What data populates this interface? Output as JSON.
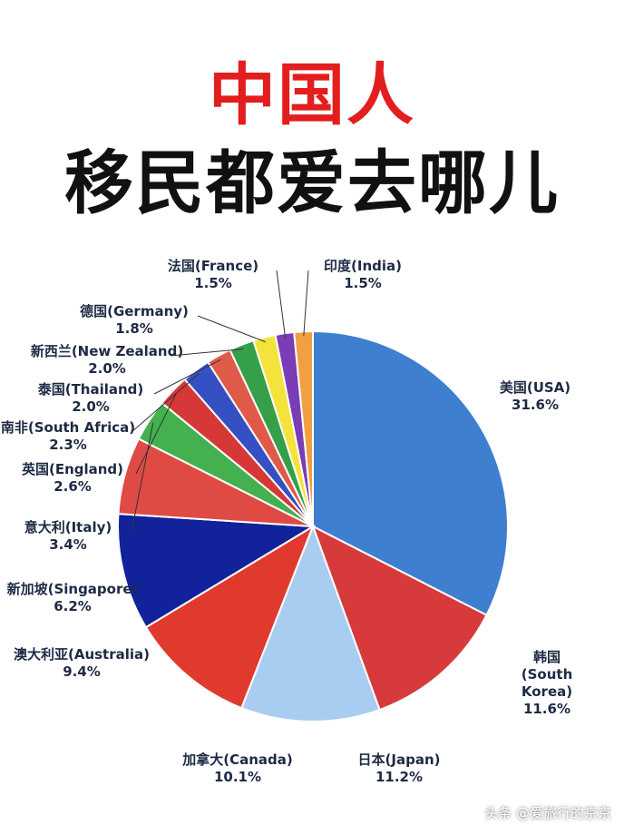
{
  "title": "中国人",
  "subtitle": "移民都爱去哪儿",
  "watermark": "头条 @爱旅行的京京",
  "chart_data": {
    "type": "pie",
    "categories": [
      "美国(USA)",
      "韩国(South Korea)",
      "日本(Japan)",
      "加拿大(Canada)",
      "澳大利亚(Australia)",
      "新加坡(Singapore)",
      "意大利(Italy)",
      "英国(England)",
      "南非(South Africa)",
      "泰国(Thailand)",
      "新西兰(New Zealand)",
      "德国(Germany)",
      "法国(France)",
      "印度(India)"
    ],
    "values": [
      31.6,
      11.6,
      11.2,
      10.1,
      9.4,
      6.2,
      3.4,
      2.6,
      2.3,
      2.0,
      2.0,
      1.8,
      1.5,
      1.5
    ],
    "value_labels": [
      "31.6%",
      "11.6%",
      "11.2%",
      "10.1%",
      "9.4%",
      "6.2%",
      "3.4%",
      "2.6%",
      "2.3%",
      "2.0%",
      "2.0%",
      "1.8%",
      "1.5%",
      "1.5%"
    ],
    "colors": [
      "#3f7fd0",
      "#d73a3a",
      "#a8cdf0",
      "#e03a2f",
      "#12229a",
      "#e04a45",
      "#44b04f",
      "#d63838",
      "#3550c2",
      "#e05a4a",
      "#35a048",
      "#f3e33a",
      "#7a3db5",
      "#f0a040"
    ]
  }
}
